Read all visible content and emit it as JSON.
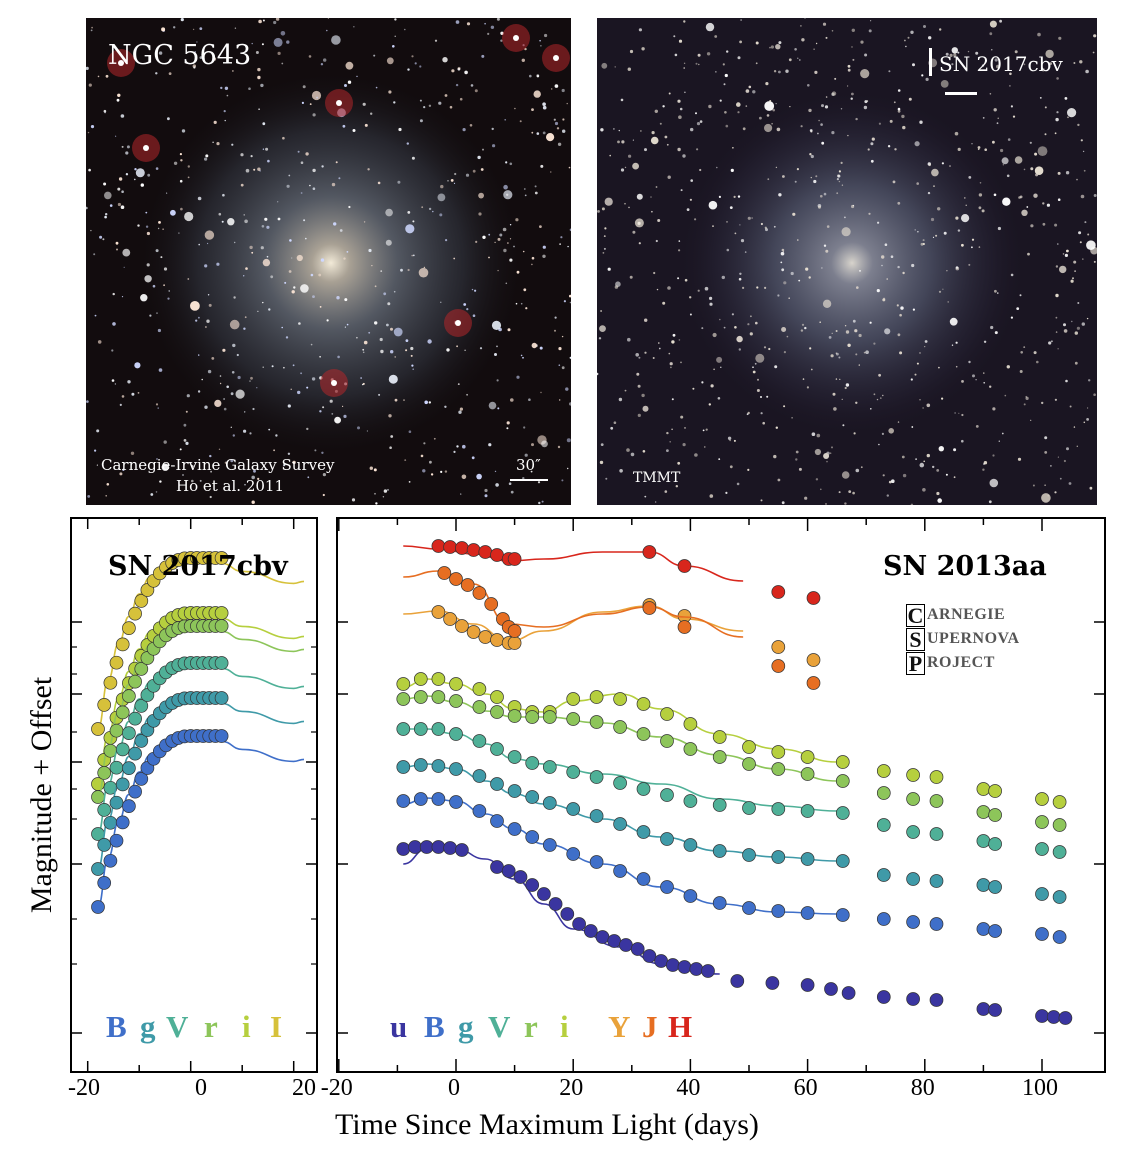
{
  "top_left_image": {
    "title": "NGC 5643",
    "credit_line1": "Carnegie-Irvine Galaxy Survey",
    "credit_line2": "Ho et al. 2011",
    "scale_label": "30″"
  },
  "top_right_image": {
    "label": "SN 2017cbv",
    "credit": "TMMT"
  },
  "left_plot": {
    "title": "SN 2017cbv",
    "filters": [
      {
        "letter": "B",
        "color": "#3f6fc9"
      },
      {
        "letter": "g",
        "color": "#3f9aa8"
      },
      {
        "letter": "V",
        "color": "#4fb097"
      },
      {
        "letter": "r",
        "color": "#8dc55a"
      },
      {
        "letter": "i",
        "color": "#b6cf3e"
      },
      {
        "letter": "I",
        "color": "#d6c13a"
      }
    ],
    "x_ticks": [
      "-20",
      "0",
      "20"
    ]
  },
  "right_plot": {
    "title": "SN 2013aa",
    "csp": [
      {
        "initial": "C",
        "rest": "ARNEGIE"
      },
      {
        "initial": "S",
        "rest": "UPERNOVA"
      },
      {
        "initial": "P",
        "rest": "ROJECT"
      }
    ],
    "filters": [
      {
        "letter": "u",
        "color": "#3a35a0"
      },
      {
        "letter": "B",
        "color": "#3f6fc9"
      },
      {
        "letter": "g",
        "color": "#3f9aa8"
      },
      {
        "letter": "V",
        "color": "#4fb097"
      },
      {
        "letter": "r",
        "color": "#8dc55a"
      },
      {
        "letter": "i",
        "color": "#b6cf3e"
      },
      {
        "letter": "Y",
        "color": "#e9a23a"
      },
      {
        "letter": "J",
        "color": "#e66e22"
      },
      {
        "letter": "H",
        "color": "#d8261c"
      }
    ],
    "x_ticks": [
      "-20",
      "0",
      "20",
      "40",
      "60",
      "80",
      "100"
    ]
  },
  "ylabel": "Magnitude + Offset",
  "xlabel": "Time Since Maximum Light (days)",
  "chart_data": [
    {
      "type": "scatter",
      "title": "SN 2017cbv",
      "xlabel": "Time Since Maximum Light (days)",
      "ylabel": "Magnitude + Offset",
      "xlim": [
        -20,
        20
      ],
      "series": [
        {
          "name": "I",
          "color": "#d6c13a",
          "x": [
            -18,
            -16,
            -14,
            -12,
            -10,
            -8,
            -6,
            -4,
            -2,
            0,
            2,
            4,
            6
          ],
          "y": [
            0.0,
            0.55,
            0.95,
            1.25,
            1.5,
            1.68,
            1.8,
            1.87,
            1.9,
            1.9,
            1.88,
            1.86,
            1.84
          ]
        },
        {
          "name": "i",
          "color": "#b6cf3e",
          "x": [
            -18,
            -16,
            -14,
            -12,
            -10,
            -8,
            -6,
            -4,
            -2,
            0,
            2,
            4,
            6
          ],
          "y": [
            0.0,
            0.55,
            0.95,
            1.25,
            1.5,
            1.68,
            1.8,
            1.87,
            1.9,
            1.9,
            1.88,
            1.86,
            1.84
          ]
        },
        {
          "name": "r",
          "color": "#8dc55a",
          "x": [
            -18,
            -16,
            -14,
            -12,
            -10,
            -8,
            -6,
            -4,
            -2,
            0,
            2,
            4,
            6
          ],
          "y": [
            0.0,
            0.55,
            0.95,
            1.25,
            1.5,
            1.68,
            1.8,
            1.87,
            1.9,
            1.9,
            1.88,
            1.86,
            1.84
          ]
        },
        {
          "name": "V",
          "color": "#4fb097",
          "x": [
            -18,
            -16,
            -14,
            -12,
            -10,
            -8,
            -6,
            -4,
            -2,
            0,
            2,
            4,
            6
          ],
          "y": [
            0.0,
            0.55,
            0.95,
            1.25,
            1.5,
            1.68,
            1.8,
            1.87,
            1.9,
            1.9,
            1.88,
            1.86,
            1.84
          ]
        },
        {
          "name": "g",
          "color": "#3f9aa8",
          "x": [
            -18,
            -16,
            -14,
            -12,
            -10,
            -8,
            -6,
            -4,
            -2,
            0,
            2,
            4,
            6
          ],
          "y": [
            0.0,
            0.55,
            0.95,
            1.25,
            1.5,
            1.68,
            1.8,
            1.87,
            1.9,
            1.9,
            1.88,
            1.86,
            1.84
          ]
        },
        {
          "name": "B",
          "color": "#3f6fc9",
          "x": [
            -18,
            -16,
            -14,
            -12,
            -10,
            -8,
            -6,
            -4,
            -2,
            0,
            2,
            4,
            6
          ],
          "y": [
            0.0,
            0.55,
            0.95,
            1.25,
            1.5,
            1.68,
            1.8,
            1.87,
            1.9,
            1.9,
            1.88,
            1.86,
            1.84
          ]
        }
      ]
    },
    {
      "type": "scatter",
      "title": "SN 2013aa",
      "xlabel": "Time Since Maximum Light (days)",
      "ylabel": "Magnitude + Offset",
      "xlim": [
        -21,
        110
      ],
      "series": [
        {
          "name": "H",
          "color": "#d8261c",
          "x": [
            -3,
            -1,
            1,
            3,
            5,
            7,
            9,
            33,
            39,
            55,
            61
          ],
          "y": [
            0,
            0.05,
            0.1,
            0.15,
            0.2,
            0.25,
            0.3,
            0.15,
            0.25,
            1.1,
            1.3
          ]
        },
        {
          "name": "J",
          "color": "#e66e22",
          "x": [
            -3,
            -1,
            1,
            3,
            5,
            7,
            9,
            33,
            39,
            55,
            61
          ],
          "y": [
            0,
            0.2,
            0.6,
            1.0,
            1.5,
            2.0,
            2.5,
            1.5,
            1.9,
            3.3,
            3.5
          ]
        },
        {
          "name": "Y",
          "color": "#e9a23a",
          "x": [
            -3,
            -1,
            1,
            3,
            5,
            7,
            9,
            33,
            39,
            55,
            61
          ],
          "y": [
            0,
            0.3,
            0.6,
            0.8,
            1.0,
            1.1,
            1.2,
            0.2,
            0.3,
            1.4,
            1.5
          ]
        },
        {
          "name": "i",
          "color": "#b6cf3e",
          "x": [
            -5,
            0,
            5,
            10,
            15,
            20,
            25,
            30,
            35,
            40,
            45,
            50,
            55,
            60,
            65,
            73,
            78,
            82,
            90,
            100
          ],
          "y": [
            0,
            0.3,
            1.0,
            1.5,
            1.5,
            1.2,
            0.9,
            1.0,
            1.6,
            2.2,
            2.8,
            3.2,
            3.5,
            3.7,
            3.9,
            4.1,
            4.2,
            4.3,
            4.5,
            4.7
          ]
        },
        {
          "name": "r",
          "color": "#8dc55a",
          "x": [
            -5,
            0,
            5,
            10,
            15,
            20,
            25,
            30,
            35,
            40,
            45,
            50,
            55,
            60,
            65,
            73,
            78,
            82,
            90,
            100
          ],
          "y": [
            0,
            0.4,
            1.0,
            1.4,
            1.5,
            1.5,
            1.6,
            1.9,
            2.3,
            2.7,
            3.0,
            3.3,
            3.5,
            3.7,
            3.8,
            4.0,
            4.1,
            4.2,
            4.3,
            4.5
          ]
        },
        {
          "name": "V",
          "color": "#4fb097",
          "x": [
            -5,
            0,
            5,
            10,
            15,
            20,
            25,
            30,
            35,
            40,
            45,
            50,
            55,
            60,
            65,
            73,
            78,
            82,
            90,
            100
          ],
          "y": [
            0,
            0.4,
            1.0,
            1.6,
            2.0,
            2.4,
            2.8,
            3.1,
            3.3,
            3.5,
            3.6,
            3.7,
            3.8,
            3.9,
            4.0,
            4.1,
            4.2,
            4.3,
            4.4,
            4.5
          ]
        },
        {
          "name": "g",
          "color": "#3f9aa8",
          "x": [
            -5,
            0,
            5,
            10,
            15,
            20,
            25,
            30,
            35,
            40,
            45,
            50,
            55,
            60,
            65,
            73,
            78,
            82,
            90,
            100
          ],
          "y": [
            0,
            0.5,
            1.3,
            2.2,
            3.0,
            3.6,
            4.1,
            4.5,
            4.7,
            4.9,
            5.0,
            5.1,
            5.15,
            5.2,
            5.3,
            5.4,
            5.5,
            5.5,
            5.6,
            5.7
          ]
        },
        {
          "name": "B",
          "color": "#3f6fc9",
          "x": [
            -5,
            0,
            5,
            10,
            15,
            20,
            25,
            30,
            35,
            40,
            45,
            50,
            55,
            60,
            65,
            73,
            78,
            82,
            90,
            100
          ],
          "y": [
            0,
            0.5,
            1.5,
            2.5,
            3.3,
            3.9,
            4.3,
            4.6,
            4.8,
            5.0,
            5.1,
            5.2,
            5.25,
            5.3,
            5.4,
            5.5,
            5.55,
            5.6,
            5.7,
            5.8
          ]
        },
        {
          "name": "u",
          "color": "#3a35a0",
          "x": [
            -5,
            0,
            5,
            10,
            15,
            20,
            25,
            30,
            35,
            40,
            45,
            50,
            55,
            60,
            65,
            73,
            78,
            82,
            90,
            100
          ],
          "y": [
            0,
            0.4,
            1.4,
            2.5,
            3.5,
            4.3,
            4.8,
            5.1,
            5.3,
            5.5,
            5.6,
            5.7,
            5.8,
            5.9,
            6.0,
            6.2,
            6.3,
            6.4,
            6.5,
            6.6
          ]
        }
      ]
    }
  ]
}
